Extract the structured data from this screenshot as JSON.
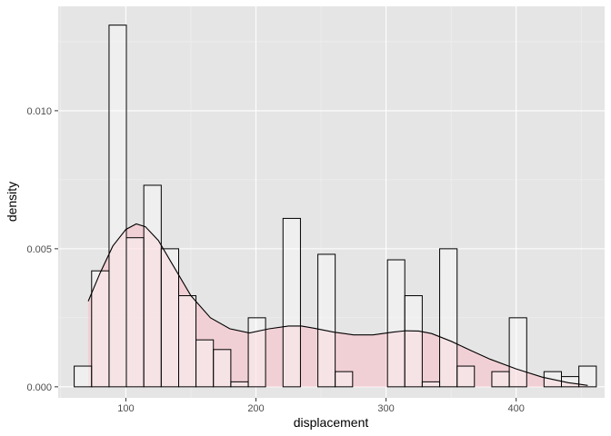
{
  "chart_data": {
    "type": "histogram",
    "title": "",
    "xlabel": "displacement",
    "ylabel": "density",
    "xlim": [
      48,
      468
    ],
    "ylim": [
      -0.0004,
      0.01378
    ],
    "x_ticks": [
      100,
      200,
      300,
      400
    ],
    "x_tick_labels": [
      "100",
      "200",
      "300",
      "400"
    ],
    "y_ticks": [
      0.0,
      0.005,
      0.01
    ],
    "y_tick_labels": [
      "0.000",
      "0.005",
      "0.010"
    ],
    "grid": true,
    "legend": "none",
    "colors": {
      "panel_background": "#e5e5e5",
      "grid_major": "#ffffff",
      "grid_minor": "#f0f0f0",
      "bar_fill": "#ffffff",
      "bar_outline": "#000000",
      "density_fill": "#ffb6c1",
      "density_line": "#000000"
    },
    "histogram": {
      "bin_width": 13.375,
      "bins": [
        {
          "x0": 60.3,
          "x1": 73.7,
          "density": 0.00075
        },
        {
          "x0": 73.7,
          "x1": 87.1,
          "density": 0.0042
        },
        {
          "x0": 87.1,
          "x1": 100.4,
          "density": 0.0131
        },
        {
          "x0": 100.4,
          "x1": 113.8,
          "density": 0.0054
        },
        {
          "x0": 113.8,
          "x1": 127.2,
          "density": 0.0073
        },
        {
          "x0": 127.2,
          "x1": 140.6,
          "density": 0.005
        },
        {
          "x0": 140.6,
          "x1": 153.9,
          "density": 0.0033
        },
        {
          "x0": 153.9,
          "x1": 167.3,
          "density": 0.0017
        },
        {
          "x0": 167.3,
          "x1": 180.7,
          "density": 0.00135
        },
        {
          "x0": 180.7,
          "x1": 194.1,
          "density": 0.00018
        },
        {
          "x0": 194.1,
          "x1": 207.4,
          "density": 0.0025
        },
        {
          "x0": 207.4,
          "x1": 220.8,
          "density": 0.0
        },
        {
          "x0": 220.8,
          "x1": 234.2,
          "density": 0.0061
        },
        {
          "x0": 234.2,
          "x1": 247.6,
          "density": 0.0
        },
        {
          "x0": 247.6,
          "x1": 260.9,
          "density": 0.0048
        },
        {
          "x0": 260.9,
          "x1": 274.3,
          "density": 0.00055
        },
        {
          "x0": 274.3,
          "x1": 287.7,
          "density": 0.0
        },
        {
          "x0": 287.7,
          "x1": 301.1,
          "density": 0.0
        },
        {
          "x0": 301.1,
          "x1": 314.4,
          "density": 0.0046
        },
        {
          "x0": 314.4,
          "x1": 327.8,
          "density": 0.0033
        },
        {
          "x0": 327.8,
          "x1": 341.2,
          "density": 0.00018
        },
        {
          "x0": 341.2,
          "x1": 354.6,
          "density": 0.005
        },
        {
          "x0": 354.6,
          "x1": 367.9,
          "density": 0.00075
        },
        {
          "x0": 367.9,
          "x1": 381.3,
          "density": 0.0
        },
        {
          "x0": 381.3,
          "x1": 394.7,
          "density": 0.00055
        },
        {
          "x0": 394.7,
          "x1": 408.1,
          "density": 0.0025
        },
        {
          "x0": 408.1,
          "x1": 421.4,
          "density": 0.0
        },
        {
          "x0": 421.4,
          "x1": 434.8,
          "density": 0.00055
        },
        {
          "x0": 434.8,
          "x1": 448.2,
          "density": 0.00037
        },
        {
          "x0": 448.2,
          "x1": 461.6,
          "density": 0.00075
        }
      ]
    },
    "density_curve": {
      "x": [
        71.1,
        80,
        90,
        100,
        108,
        115,
        125,
        135,
        150,
        165,
        180,
        195,
        210,
        225,
        235,
        245,
        260,
        275,
        290,
        305,
        315,
        325,
        335,
        350,
        365,
        380,
        400,
        420,
        440,
        455
      ],
      "y": [
        0.0031,
        0.0041,
        0.0051,
        0.0057,
        0.0059,
        0.0058,
        0.0053,
        0.0045,
        0.0033,
        0.0025,
        0.0021,
        0.00195,
        0.0021,
        0.0022,
        0.0022,
        0.00212,
        0.00198,
        0.00188,
        0.00188,
        0.00198,
        0.00203,
        0.00202,
        0.00193,
        0.00165,
        0.00132,
        0.001,
        0.00065,
        0.00035,
        0.00015,
        5e-05
      ]
    }
  }
}
